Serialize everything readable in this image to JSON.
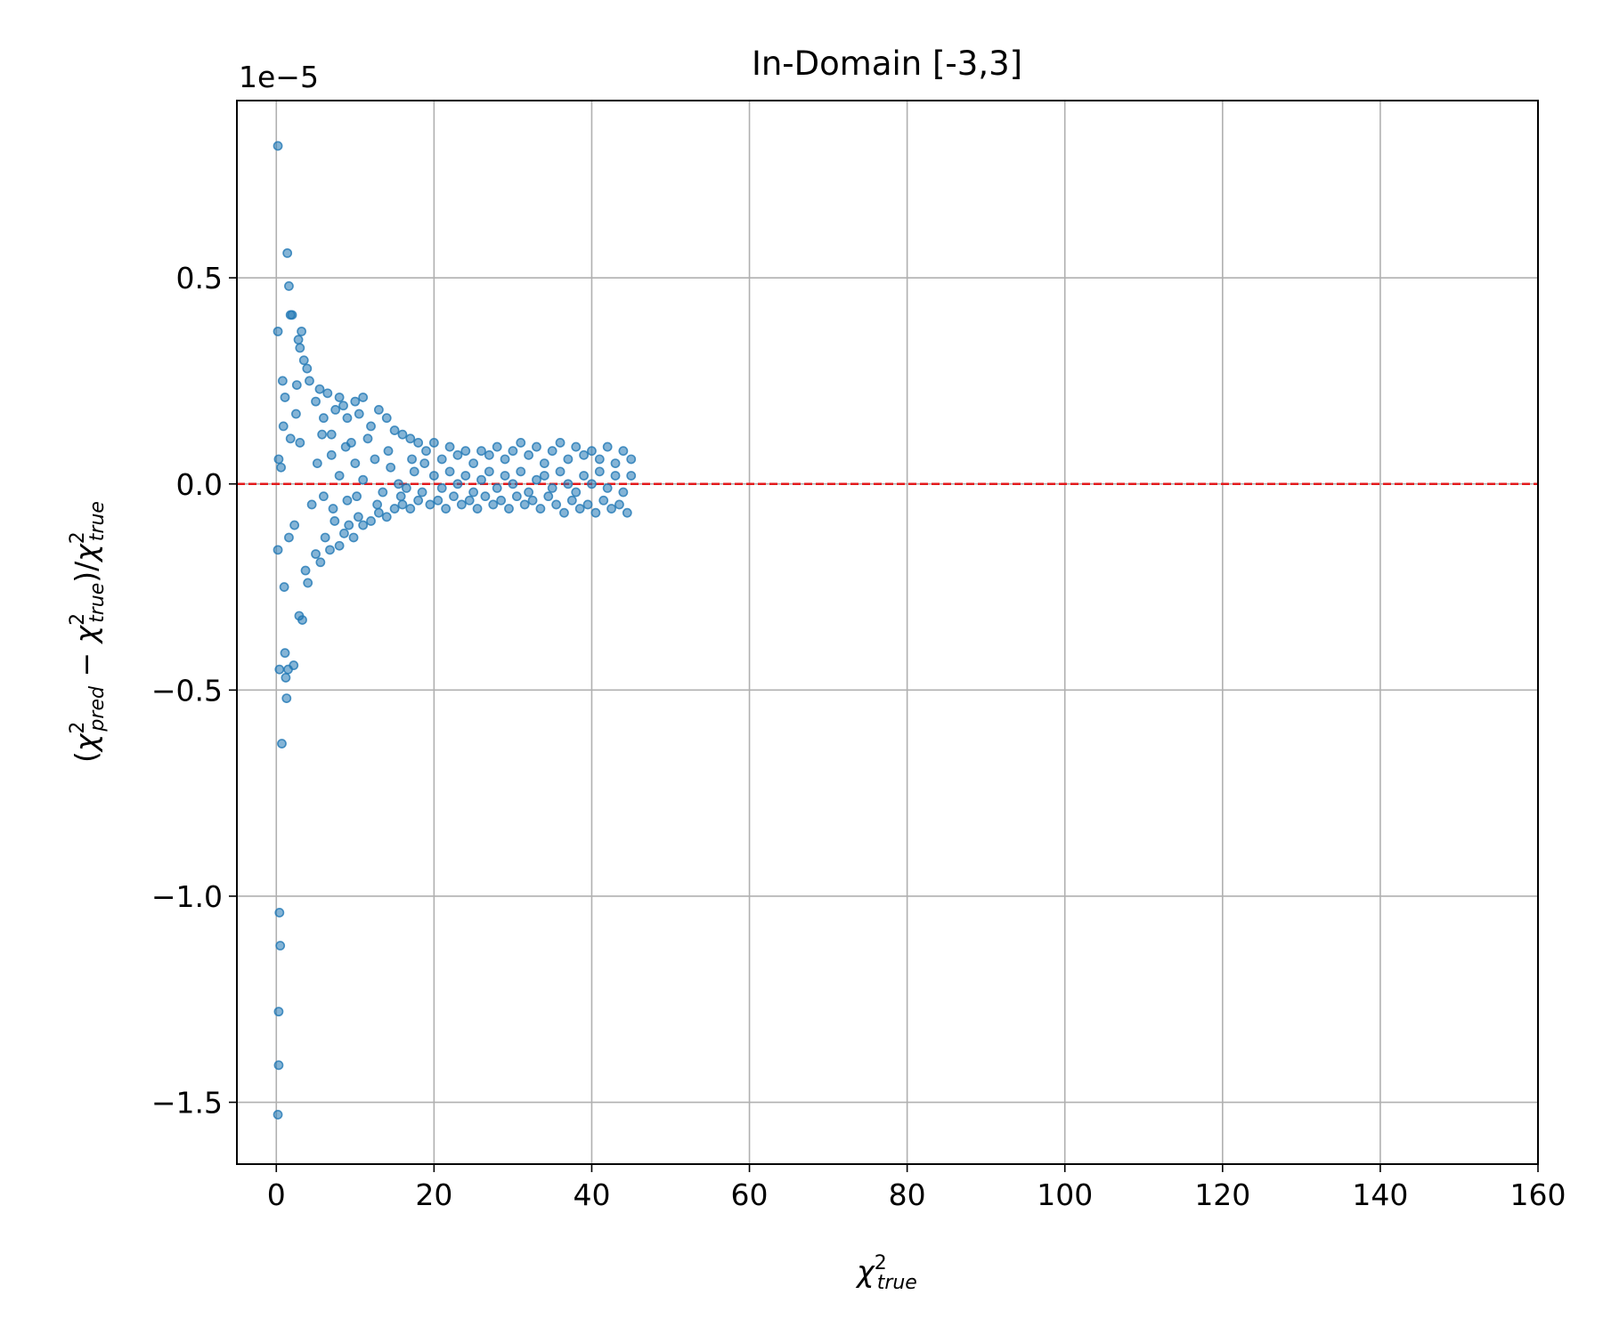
{
  "chart_data": {
    "type": "scatter",
    "title": "In-Domain [-3,3]",
    "xlabel": {
      "base": "χ",
      "sup": "2",
      "sub": "true"
    },
    "ylabel": {
      "parts": [
        {
          "t": "(",
          "style": "normal"
        },
        {
          "t": "χ",
          "style": "italic"
        },
        {
          "sup": "2",
          "sub": "pred"
        },
        {
          "t": " − ",
          "style": "normal"
        },
        {
          "t": "χ",
          "style": "italic"
        },
        {
          "sup": "2",
          "sub": "true"
        },
        {
          "t": ")/",
          "style": "normal"
        },
        {
          "t": "χ",
          "style": "italic"
        },
        {
          "sup": "2",
          "sub": "true"
        }
      ]
    },
    "y_offset_label": "1e−5",
    "y_scale_factor": 1e-05,
    "xlim": [
      -5,
      160
    ],
    "ylim": [
      -1.65,
      0.93
    ],
    "xticks": [
      0,
      20,
      40,
      60,
      80,
      100,
      120,
      140,
      160
    ],
    "xtick_labels": [
      "0",
      "20",
      "40",
      "60",
      "80",
      "100",
      "120",
      "140",
      "160"
    ],
    "yticks": [
      -1.5,
      -1.0,
      -0.5,
      0.0,
      0.5
    ],
    "ytick_labels": [
      "−1.5",
      "−1.0",
      "−0.5",
      "0.0",
      "0.5"
    ],
    "grid": true,
    "reference_line": {
      "y": 0,
      "color": "#e31a1c",
      "style": "dashed"
    },
    "point_color": "#1f77b4",
    "points": [
      [
        0.2,
        0.82
      ],
      [
        0.2,
        0.37
      ],
      [
        0.3,
        0.06
      ],
      [
        0.2,
        -0.16
      ],
      [
        0.4,
        -0.45
      ],
      [
        0.4,
        -1.04
      ],
      [
        0.5,
        -1.12
      ],
      [
        0.3,
        -1.28
      ],
      [
        0.3,
        -1.41
      ],
      [
        0.2,
        -1.53
      ],
      [
        0.7,
        -0.63
      ],
      [
        0.8,
        0.25
      ],
      [
        0.9,
        0.14
      ],
      [
        1.0,
        -0.25
      ],
      [
        1.1,
        -0.41
      ],
      [
        1.2,
        -0.47
      ],
      [
        1.4,
        0.56
      ],
      [
        1.6,
        0.48
      ],
      [
        1.8,
        0.41
      ],
      [
        2.0,
        0.41
      ],
      [
        1.3,
        -0.52
      ],
      [
        1.5,
        -0.45
      ],
      [
        2.2,
        -0.44
      ],
      [
        2.5,
        0.17
      ],
      [
        2.8,
        0.35
      ],
      [
        3.0,
        0.33
      ],
      [
        3.2,
        0.37
      ],
      [
        2.6,
        0.24
      ],
      [
        2.9,
        -0.32
      ],
      [
        3.3,
        -0.33
      ],
      [
        3.5,
        0.3
      ],
      [
        3.9,
        0.28
      ],
      [
        4.2,
        0.25
      ],
      [
        4.0,
        -0.24
      ],
      [
        3.7,
        -0.21
      ],
      [
        1.8,
        0.11
      ],
      [
        2.3,
        -0.1
      ],
      [
        0.6,
        0.04
      ],
      [
        1.1,
        0.21
      ],
      [
        1.6,
        -0.13
      ],
      [
        5.0,
        0.2
      ],
      [
        5.5,
        0.23
      ],
      [
        6.0,
        0.16
      ],
      [
        6.5,
        0.22
      ],
      [
        7.0,
        0.12
      ],
      [
        7.5,
        0.18
      ],
      [
        8.0,
        0.21
      ],
      [
        8.5,
        0.19
      ],
      [
        9.0,
        0.16
      ],
      [
        9.5,
        0.1
      ],
      [
        10.0,
        0.2
      ],
      [
        10.5,
        0.17
      ],
      [
        11.0,
        0.21
      ],
      [
        12.0,
        0.14
      ],
      [
        13.0,
        0.18
      ],
      [
        14.0,
        0.16
      ],
      [
        15.0,
        0.13
      ],
      [
        16.0,
        0.12
      ],
      [
        17.0,
        0.11
      ],
      [
        18.0,
        0.1
      ],
      [
        5.0,
        -0.17
      ],
      [
        5.6,
        -0.19
      ],
      [
        6.2,
        -0.13
      ],
      [
        6.8,
        -0.16
      ],
      [
        7.4,
        -0.09
      ],
      [
        8.0,
        -0.15
      ],
      [
        8.6,
        -0.12
      ],
      [
        9.2,
        -0.1
      ],
      [
        9.8,
        -0.13
      ],
      [
        10.4,
        -0.08
      ],
      [
        11.0,
        -0.1
      ],
      [
        12.0,
        -0.09
      ],
      [
        13.0,
        -0.07
      ],
      [
        14.0,
        -0.08
      ],
      [
        15.0,
        -0.06
      ],
      [
        16.0,
        -0.05
      ],
      [
        17.0,
        -0.06
      ],
      [
        18.0,
        -0.04
      ],
      [
        5.2,
        0.05
      ],
      [
        6.0,
        -0.03
      ],
      [
        7.0,
        0.07
      ],
      [
        8.0,
        0.02
      ],
      [
        9.0,
        -0.04
      ],
      [
        10.0,
        0.05
      ],
      [
        11.0,
        0.01
      ],
      [
        12.5,
        0.06
      ],
      [
        13.5,
        -0.02
      ],
      [
        14.5,
        0.04
      ],
      [
        15.5,
        0.0
      ],
      [
        16.5,
        -0.01
      ],
      [
        17.5,
        0.03
      ],
      [
        18.5,
        -0.02
      ],
      [
        19.0,
        0.08
      ],
      [
        20.0,
        0.1
      ],
      [
        21.0,
        0.06
      ],
      [
        22.0,
        0.09
      ],
      [
        23.0,
        0.07
      ],
      [
        24.0,
        0.08
      ],
      [
        25.0,
        0.05
      ],
      [
        26.0,
        0.08
      ],
      [
        27.0,
        0.07
      ],
      [
        28.0,
        0.09
      ],
      [
        29.0,
        0.06
      ],
      [
        30.0,
        0.08
      ],
      [
        31.0,
        0.1
      ],
      [
        32.0,
        0.07
      ],
      [
        33.0,
        0.09
      ],
      [
        34.0,
        0.05
      ],
      [
        35.0,
        0.08
      ],
      [
        36.0,
        0.1
      ],
      [
        37.0,
        0.06
      ],
      [
        38.0,
        0.09
      ],
      [
        39.0,
        0.07
      ],
      [
        40.0,
        0.08
      ],
      [
        41.0,
        0.06
      ],
      [
        42.0,
        0.09
      ],
      [
        43.0,
        0.05
      ],
      [
        44.0,
        0.08
      ],
      [
        45.0,
        0.06
      ],
      [
        19.5,
        -0.05
      ],
      [
        20.5,
        -0.04
      ],
      [
        21.5,
        -0.06
      ],
      [
        22.5,
        -0.03
      ],
      [
        23.5,
        -0.05
      ],
      [
        24.5,
        -0.04
      ],
      [
        25.5,
        -0.06
      ],
      [
        26.5,
        -0.03
      ],
      [
        27.5,
        -0.05
      ],
      [
        28.5,
        -0.04
      ],
      [
        29.5,
        -0.06
      ],
      [
        30.5,
        -0.03
      ],
      [
        31.5,
        -0.05
      ],
      [
        32.5,
        -0.04
      ],
      [
        33.5,
        -0.06
      ],
      [
        34.5,
        -0.03
      ],
      [
        35.5,
        -0.05
      ],
      [
        36.5,
        -0.07
      ],
      [
        37.5,
        -0.04
      ],
      [
        38.5,
        -0.06
      ],
      [
        39.5,
        -0.05
      ],
      [
        40.5,
        -0.07
      ],
      [
        41.5,
        -0.04
      ],
      [
        42.5,
        -0.06
      ],
      [
        43.5,
        -0.05
      ],
      [
        44.5,
        -0.07
      ],
      [
        20.0,
        0.02
      ],
      [
        21.0,
        -0.01
      ],
      [
        22.0,
        0.03
      ],
      [
        23.0,
        0.0
      ],
      [
        24.0,
        0.02
      ],
      [
        25.0,
        -0.02
      ],
      [
        26.0,
        0.01
      ],
      [
        27.0,
        0.03
      ],
      [
        28.0,
        -0.01
      ],
      [
        29.0,
        0.02
      ],
      [
        30.0,
        0.0
      ],
      [
        31.0,
        0.03
      ],
      [
        32.0,
        -0.02
      ],
      [
        33.0,
        0.01
      ],
      [
        34.0,
        0.02
      ],
      [
        35.0,
        -0.01
      ],
      [
        36.0,
        0.03
      ],
      [
        37.0,
        0.0
      ],
      [
        38.0,
        -0.02
      ],
      [
        39.0,
        0.02
      ],
      [
        40.0,
        0.0
      ],
      [
        41.0,
        0.03
      ],
      [
        42.0,
        -0.01
      ],
      [
        43.0,
        0.02
      ],
      [
        44.0,
        -0.02
      ],
      [
        45.0,
        0.02
      ],
      [
        3.0,
        0.1
      ],
      [
        4.5,
        -0.05
      ],
      [
        5.8,
        0.12
      ],
      [
        7.2,
        -0.06
      ],
      [
        8.8,
        0.09
      ],
      [
        10.2,
        -0.03
      ],
      [
        11.6,
        0.11
      ],
      [
        12.8,
        -0.05
      ],
      [
        14.2,
        0.08
      ],
      [
        15.8,
        -0.03
      ],
      [
        17.2,
        0.06
      ],
      [
        18.8,
        0.05
      ]
    ]
  }
}
